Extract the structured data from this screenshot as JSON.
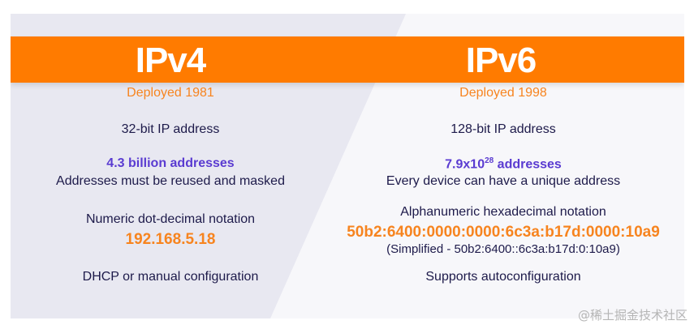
{
  "colors": {
    "band": "#ff7b00",
    "text": "#1d1a4a",
    "accent_purple": "#5a3bd1",
    "accent_orange": "#f7841f"
  },
  "ipv4": {
    "title": "IPv4",
    "deployed": "Deployed 1981",
    "bits": "32-bit IP address",
    "count": "4.3 billion addresses",
    "count_note": "Addresses must be reused and masked",
    "notation": "Numeric dot-decimal notation",
    "example": "192.168.5.18",
    "config": "DHCP or manual configuration"
  },
  "ipv6": {
    "title": "IPv6",
    "deployed": "Deployed 1998",
    "bits": "128-bit IP address",
    "count_base": "7.9x10",
    "count_exp": "28",
    "count_suffix": " addresses",
    "count_note": "Every device can have a unique address",
    "notation": "Alphanumeric hexadecimal notation",
    "example": "50b2:6400:0000:0000:6c3a:b17d:0000:10a9",
    "simplified": "(Simplified - 50b2:6400::6c3a:b17d:0:10a9)",
    "config": "Supports autoconfiguration"
  },
  "watermark": "@稀土掘金技术社区"
}
